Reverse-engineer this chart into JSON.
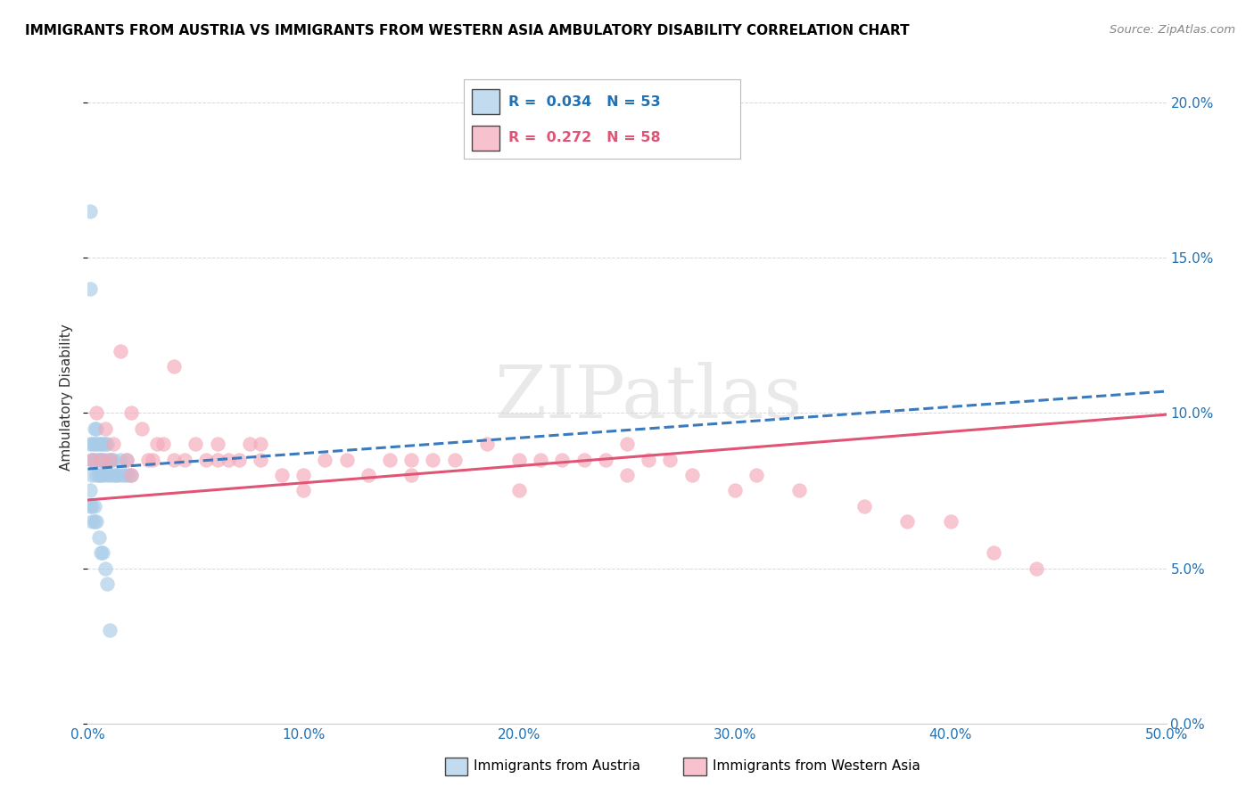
{
  "title": "IMMIGRANTS FROM AUSTRIA VS IMMIGRANTS FROM WESTERN ASIA AMBULATORY DISABILITY CORRELATION CHART",
  "source": "Source: ZipAtlas.com",
  "ylabel": "Ambulatory Disability",
  "blue_color": "#a8cce8",
  "pink_color": "#f4a8b8",
  "blue_line_color": "#3a7abf",
  "pink_line_color": "#e05575",
  "background_color": "#ffffff",
  "xlim": [
    0.0,
    0.5
  ],
  "ylim": [
    0.0,
    0.21
  ],
  "yticks": [
    0.0,
    0.05,
    0.1,
    0.15,
    0.2
  ],
  "xticks": [
    0.0,
    0.1,
    0.2,
    0.3,
    0.4,
    0.5
  ],
  "legend_blue_text": "R =  0.034   N = 53",
  "legend_pink_text": "R =  0.272   N = 58",
  "austria_x": [
    0.001,
    0.001,
    0.001,
    0.002,
    0.002,
    0.002,
    0.002,
    0.003,
    0.003,
    0.003,
    0.004,
    0.004,
    0.004,
    0.004,
    0.005,
    0.005,
    0.005,
    0.006,
    0.006,
    0.006,
    0.007,
    0.007,
    0.007,
    0.008,
    0.008,
    0.009,
    0.009,
    0.01,
    0.01,
    0.011,
    0.012,
    0.012,
    0.013,
    0.014,
    0.015,
    0.016,
    0.017,
    0.018,
    0.019,
    0.02,
    0.001,
    0.001,
    0.002,
    0.002,
    0.003,
    0.003,
    0.004,
    0.005,
    0.006,
    0.007,
    0.008,
    0.009,
    0.01
  ],
  "austria_y": [
    0.165,
    0.14,
    0.09,
    0.09,
    0.085,
    0.085,
    0.08,
    0.095,
    0.09,
    0.085,
    0.095,
    0.09,
    0.085,
    0.08,
    0.09,
    0.085,
    0.08,
    0.09,
    0.085,
    0.08,
    0.09,
    0.085,
    0.08,
    0.09,
    0.085,
    0.09,
    0.08,
    0.085,
    0.08,
    0.085,
    0.085,
    0.08,
    0.08,
    0.08,
    0.085,
    0.08,
    0.08,
    0.085,
    0.08,
    0.08,
    0.075,
    0.07,
    0.07,
    0.065,
    0.07,
    0.065,
    0.065,
    0.06,
    0.055,
    0.055,
    0.05,
    0.045,
    0.03
  ],
  "western_asia_x": [
    0.002,
    0.004,
    0.006,
    0.008,
    0.01,
    0.012,
    0.015,
    0.018,
    0.02,
    0.025,
    0.028,
    0.03,
    0.032,
    0.035,
    0.04,
    0.045,
    0.05,
    0.055,
    0.06,
    0.065,
    0.07,
    0.075,
    0.08,
    0.09,
    0.1,
    0.11,
    0.12,
    0.13,
    0.14,
    0.15,
    0.16,
    0.17,
    0.185,
    0.2,
    0.21,
    0.22,
    0.23,
    0.24,
    0.25,
    0.26,
    0.27,
    0.28,
    0.3,
    0.31,
    0.33,
    0.36,
    0.38,
    0.4,
    0.42,
    0.44,
    0.02,
    0.04,
    0.06,
    0.08,
    0.1,
    0.15,
    0.2,
    0.25
  ],
  "western_asia_y": [
    0.085,
    0.1,
    0.085,
    0.095,
    0.085,
    0.09,
    0.12,
    0.085,
    0.1,
    0.095,
    0.085,
    0.085,
    0.09,
    0.09,
    0.115,
    0.085,
    0.09,
    0.085,
    0.09,
    0.085,
    0.085,
    0.09,
    0.085,
    0.08,
    0.08,
    0.085,
    0.085,
    0.08,
    0.085,
    0.085,
    0.085,
    0.085,
    0.09,
    0.085,
    0.085,
    0.085,
    0.085,
    0.085,
    0.09,
    0.085,
    0.085,
    0.08,
    0.075,
    0.08,
    0.075,
    0.07,
    0.065,
    0.065,
    0.055,
    0.05,
    0.08,
    0.085,
    0.085,
    0.09,
    0.075,
    0.08,
    0.075,
    0.08
  ]
}
